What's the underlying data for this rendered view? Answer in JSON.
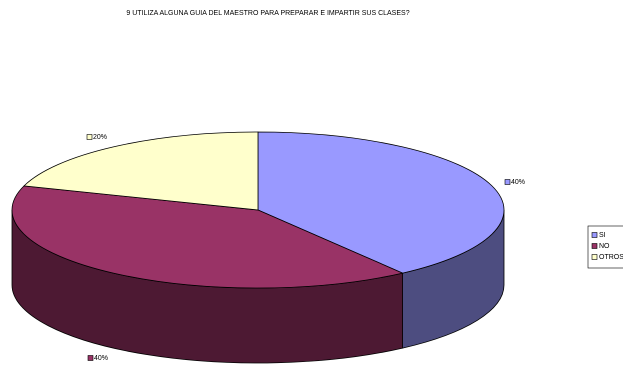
{
  "chart_data": {
    "type": "pie",
    "title": "9 UTILIZA ALGUNA GUIA DEL MAESTRO PARA PREPARAR E IMPARTIR SUS CLASES?",
    "categories": [
      "SI",
      "NO",
      "OTROS"
    ],
    "values": [
      40,
      40,
      20
    ],
    "value_labels": [
      "40%",
      "40%",
      "20%"
    ],
    "colors": [
      "#9999ff",
      "#993366",
      "#ffffcc"
    ],
    "side_colors": [
      "#4d4d80",
      "#4d1933",
      "#80806a"
    ]
  }
}
